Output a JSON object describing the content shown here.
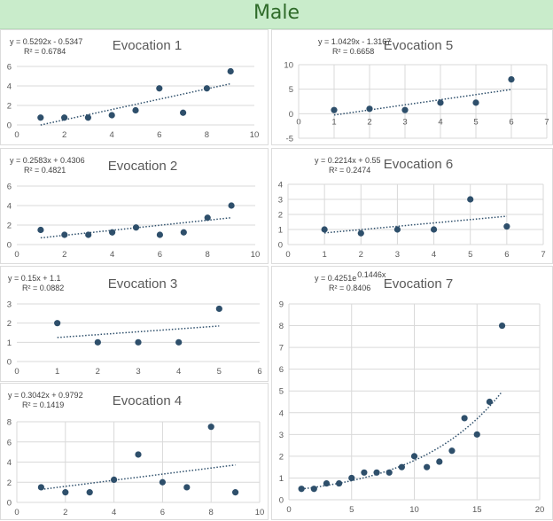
{
  "page": {
    "title": "Male"
  },
  "colors": {
    "banner_bg": "#c9eccb",
    "banner_text": "#2f6b2a",
    "marker": "#2e4f6b",
    "grid": "#d9d9d9"
  },
  "chart_data": [
    {
      "id": "evocation-1",
      "type": "scatter",
      "title": "Evocation 1",
      "equation": "y = 0.5292x - 0.5347",
      "r2": "R² = 0.6784",
      "trendline": {
        "kind": "linear",
        "slope": 0.5292,
        "intercept": -0.5347
      },
      "x": [
        1,
        2,
        3,
        4,
        5,
        6,
        7,
        8,
        9
      ],
      "y": [
        0.75,
        0.75,
        0.75,
        1,
        1.5,
        3.75,
        1.25,
        3.75,
        5.5
      ],
      "xlim": [
        0,
        10
      ],
      "xticks": [
        0,
        2,
        4,
        6,
        8,
        10
      ],
      "ylim": [
        0,
        6
      ],
      "yticks": [
        0,
        2,
        4,
        6
      ],
      "grid": "horizontal",
      "xlabel": "",
      "ylabel": ""
    },
    {
      "id": "evocation-5",
      "type": "scatter",
      "title": "Evocation 5",
      "equation": "y = 1.0429x - 1.3167",
      "r2": "R² = 0.6658",
      "trendline": {
        "kind": "linear",
        "slope": 1.0429,
        "intercept": -1.3167
      },
      "x": [
        1,
        2,
        3,
        4,
        5,
        6
      ],
      "y": [
        0.75,
        1,
        0.75,
        2.25,
        2.25,
        7
      ],
      "xlim": [
        0,
        7
      ],
      "xticks": [
        0,
        1,
        2,
        3,
        4,
        5,
        6,
        7
      ],
      "ylim": [
        -5,
        10
      ],
      "yticks": [
        -5,
        0,
        5,
        10
      ],
      "grid": "both",
      "xlabel": "",
      "ylabel": ""
    },
    {
      "id": "evocation-2",
      "type": "scatter",
      "title": "Evocation 2",
      "equation": "y = 0.2583x + 0.4306",
      "r2": "R² = 0.4821",
      "trendline": {
        "kind": "linear",
        "slope": 0.2583,
        "intercept": 0.4306
      },
      "x": [
        1,
        2,
        3,
        4,
        5,
        6,
        7,
        8,
        9
      ],
      "y": [
        1.5,
        1,
        1,
        1.25,
        1.75,
        1,
        1.25,
        2.75,
        4
      ],
      "xlim": [
        0,
        10
      ],
      "xticks": [
        0,
        2,
        4,
        6,
        8,
        10
      ],
      "ylim": [
        0,
        6
      ],
      "yticks": [
        0,
        2,
        4,
        6
      ],
      "grid": "horizontal",
      "xlabel": "",
      "ylabel": ""
    },
    {
      "id": "evocation-6",
      "type": "scatter",
      "title": "Evocation 6",
      "equation": "y = 0.2214x + 0.55",
      "r2": "R² = 0.2474",
      "trendline": {
        "kind": "linear",
        "slope": 0.2214,
        "intercept": 0.55
      },
      "x": [
        1,
        2,
        3,
        4,
        5,
        6
      ],
      "y": [
        1,
        0.75,
        1,
        1,
        3,
        1.2
      ],
      "xlim": [
        0,
        7
      ],
      "xticks": [
        0,
        1,
        2,
        3,
        4,
        5,
        6,
        7
      ],
      "ylim": [
        0,
        4
      ],
      "yticks": [
        0,
        1,
        2,
        3,
        4
      ],
      "grid": "both",
      "xlabel": "",
      "ylabel": ""
    },
    {
      "id": "evocation-3",
      "type": "scatter",
      "title": "Evocation 3",
      "equation": "y = 0.15x + 1.1",
      "r2": "R² = 0.0882",
      "trendline": {
        "kind": "linear",
        "slope": 0.15,
        "intercept": 1.1
      },
      "x": [
        1,
        2,
        3,
        4,
        5
      ],
      "y": [
        2,
        1,
        1,
        1,
        2.75
      ],
      "xlim": [
        0,
        6
      ],
      "xticks": [
        0,
        1,
        2,
        3,
        4,
        5,
        6
      ],
      "ylim": [
        0,
        3
      ],
      "yticks": [
        0,
        1,
        2,
        3
      ],
      "grid": "horizontal",
      "xlabel": "",
      "ylabel": ""
    },
    {
      "id": "evocation-4",
      "type": "scatter",
      "title": "Evocation 4",
      "equation": "y = 0.3042x + 0.9792",
      "r2": "R² = 0.1419",
      "trendline": {
        "kind": "linear",
        "slope": 0.3042,
        "intercept": 0.9792
      },
      "x": [
        1,
        2,
        3,
        4,
        5,
        6,
        7,
        8,
        9
      ],
      "y": [
        1.5,
        1,
        1,
        2.25,
        4.75,
        2,
        1.5,
        7.5,
        1
      ],
      "xlim": [
        0,
        10
      ],
      "xticks": [
        0,
        2,
        4,
        6,
        8,
        10
      ],
      "ylim": [
        0,
        8
      ],
      "yticks": [
        0,
        2,
        4,
        6,
        8
      ],
      "grid": "both",
      "xlabel": "",
      "ylabel": ""
    },
    {
      "id": "evocation-7",
      "type": "scatter",
      "title": "Evocation 7",
      "equation": "y = 0.4251e",
      "equation_exponent": "0.1446x",
      "r2": "R² = 0.8406",
      "trendline": {
        "kind": "exponential",
        "a": 0.4251,
        "b": 0.1446
      },
      "x": [
        1,
        2,
        3,
        4,
        5,
        6,
        7,
        8,
        9,
        10,
        11,
        12,
        13,
        14,
        15,
        16,
        17
      ],
      "y": [
        0.5,
        0.5,
        0.75,
        0.75,
        1,
        1.25,
        1.25,
        1.25,
        1.5,
        2,
        1.5,
        1.75,
        2.25,
        3.75,
        3,
        4.5,
        8
      ],
      "xlim": [
        0,
        20
      ],
      "xticks": [
        0,
        5,
        10,
        15,
        20
      ],
      "ylim": [
        0,
        9
      ],
      "yticks": [
        0,
        1,
        2,
        3,
        4,
        5,
        6,
        7,
        8,
        9
      ],
      "grid": "both",
      "xlabel": "",
      "ylabel": ""
    }
  ]
}
